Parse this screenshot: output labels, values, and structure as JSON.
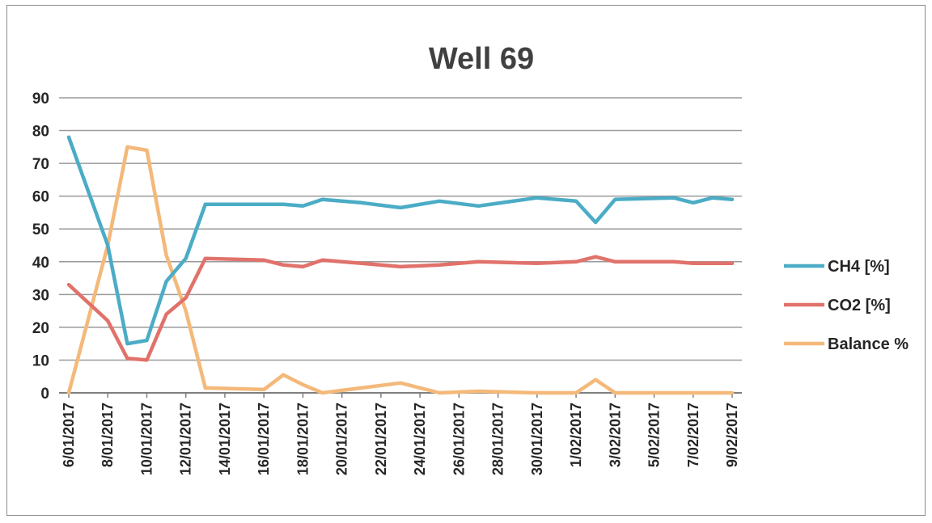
{
  "chart_data": {
    "type": "line",
    "title": "Well 69",
    "xlabel": "",
    "ylabel": "",
    "ylim": [
      0,
      90
    ],
    "yticks": [
      0,
      10,
      20,
      30,
      40,
      50,
      60,
      70,
      80,
      90
    ],
    "grid": true,
    "legend_position": "right",
    "x_tick_labels": [
      "6/01/2017",
      "8/01/2017",
      "10/01/2017",
      "12/01/2017",
      "14/01/2017",
      "16/01/2017",
      "18/01/2017",
      "20/01/2017",
      "22/01/2017",
      "24/01/2017",
      "26/01/2017",
      "28/01/2017",
      "30/01/2017",
      "1/02/2017",
      "3/02/2017",
      "5/02/2017",
      "7/02/2017",
      "9/02/2017"
    ],
    "x": [
      "6/01/2017",
      "8/01/2017",
      "9/01/2017",
      "10/01/2017",
      "11/01/2017",
      "12/01/2017",
      "13/01/2017",
      "16/01/2017",
      "17/01/2017",
      "18/01/2017",
      "19/01/2017",
      "21/01/2017",
      "23/01/2017",
      "25/01/2017",
      "27/01/2017",
      "30/01/2017",
      "1/02/2017",
      "2/02/2017",
      "3/02/2017",
      "6/02/2017",
      "7/02/2017",
      "8/02/2017",
      "9/02/2017"
    ],
    "series": [
      {
        "name": "CH4 [%]",
        "color": "#4bacc6",
        "values": [
          78,
          45,
          15,
          16,
          34,
          41,
          57.5,
          57.5,
          57.5,
          57,
          59,
          58,
          56.5,
          58.5,
          57,
          59.5,
          58.5,
          52,
          59,
          59.5,
          58,
          59.5,
          59
        ]
      },
      {
        "name": "CO2 [%]",
        "color": "#e0726b",
        "values": [
          33,
          22,
          10.5,
          10,
          24,
          29,
          41,
          40.5,
          39,
          38.5,
          40.5,
          39.5,
          38.5,
          39,
          40,
          39.5,
          40,
          41.5,
          40,
          40,
          39.5,
          39.5,
          39.5
        ]
      },
      {
        "name": "Balance %",
        "color": "#f4b97a",
        "values": [
          0,
          45,
          75,
          74,
          42,
          25,
          1.5,
          1,
          5.5,
          2.5,
          0,
          1.5,
          3,
          0,
          0.5,
          0,
          0,
          4,
          0,
          0,
          0,
          0,
          0
        ]
      }
    ]
  }
}
